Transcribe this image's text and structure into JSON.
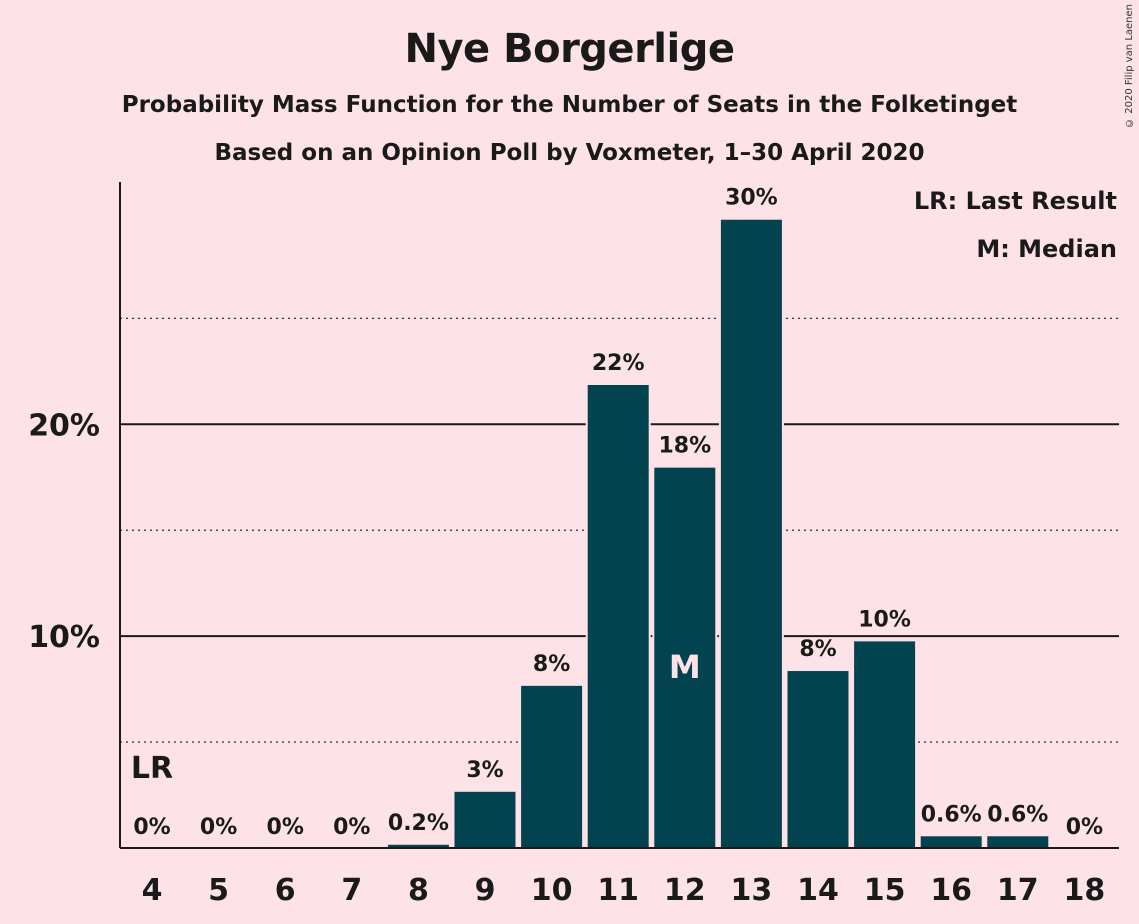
{
  "chart_data": {
    "type": "bar",
    "title": "Nye Borgerlige",
    "subtitle": "Probability Mass Function for the Number of Seats in the Folketinget",
    "subtitle2": "Based on an Opinion Poll by Voxmeter, 1–30 April 2020",
    "categories": [
      "4",
      "5",
      "6",
      "7",
      "8",
      "9",
      "10",
      "11",
      "12",
      "13",
      "14",
      "15",
      "16",
      "17",
      "18"
    ],
    "values": [
      0,
      0,
      0,
      0,
      0.2,
      2.7,
      7.7,
      21.9,
      18.0,
      29.7,
      8.4,
      9.8,
      0.6,
      0.6,
      0
    ],
    "value_labels": [
      "0%",
      "0%",
      "0%",
      "0%",
      "0.2%",
      "3%",
      "8%",
      "22%",
      "18%",
      "30%",
      "8%",
      "10%",
      "0.6%",
      "0.6%",
      "0%"
    ],
    "ylim": [
      0,
      32
    ],
    "y_major_ticks": [
      10,
      20
    ],
    "y_tick_labels": [
      "10%",
      "20%"
    ],
    "y_minor_gridlines": [
      5,
      15,
      25
    ],
    "bar_color": "#034350",
    "background_color": "#fde3e8",
    "last_result_category": "4",
    "last_result_marker": "LR",
    "median_category": "12",
    "median_marker": "M",
    "legend": [
      "LR: Last Result",
      "M: Median"
    ],
    "legend_position": "top-right"
  },
  "copyright": "© 2020 Filip van Laenen"
}
